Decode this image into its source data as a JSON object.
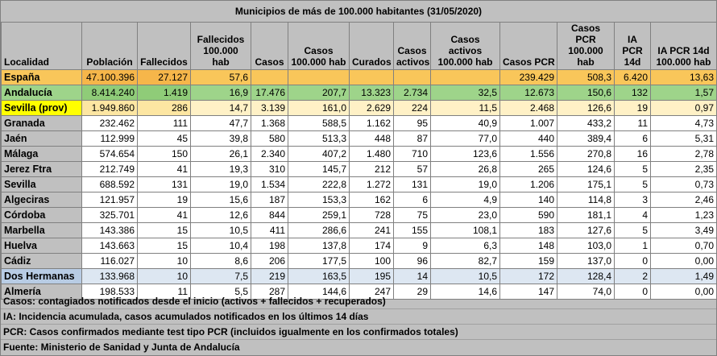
{
  "title": "Municipios de más de 100.000 habitantes (31/05/2020)",
  "columns": [
    "Localidad",
    "Población",
    "Fallecidos",
    "Fallecidos 100.000 hab",
    "Casos",
    "Casos 100.000 hab",
    "Curados",
    "Casos activos",
    "Casos activos 100.000 hab",
    "Casos PCR",
    "Casos PCR 100.000 hab",
    "IA PCR 14d",
    "IA PCR 14d 100.000 hab"
  ],
  "rows": [
    [
      "España",
      "47.100.396",
      "27.127",
      "57,6",
      "",
      "",
      "",
      "",
      "",
      "239.429",
      "508,3",
      "6.420",
      "13,63"
    ],
    [
      "Andalucía",
      "8.414.240",
      "1.419",
      "16,9",
      "17.476",
      "207,7",
      "13.323",
      "2.734",
      "32,5",
      "12.673",
      "150,6",
      "132",
      "1,57"
    ],
    [
      "Sevilla (prov)",
      "1.949.860",
      "286",
      "14,7",
      "3.139",
      "161,0",
      "2.629",
      "224",
      "11,5",
      "2.468",
      "126,6",
      "19",
      "0,97"
    ],
    [
      "Granada",
      "232.462",
      "111",
      "47,7",
      "1.368",
      "588,5",
      "1.162",
      "95",
      "40,9",
      "1.007",
      "433,2",
      "11",
      "4,73"
    ],
    [
      "Jaén",
      "112.999",
      "45",
      "39,8",
      "580",
      "513,3",
      "448",
      "87",
      "77,0",
      "440",
      "389,4",
      "6",
      "5,31"
    ],
    [
      "Málaga",
      "574.654",
      "150",
      "26,1",
      "2.340",
      "407,2",
      "1.480",
      "710",
      "123,6",
      "1.556",
      "270,8",
      "16",
      "2,78"
    ],
    [
      "Jerez Ftra",
      "212.749",
      "41",
      "19,3",
      "310",
      "145,7",
      "212",
      "57",
      "26,8",
      "265",
      "124,6",
      "5",
      "2,35"
    ],
    [
      "Sevilla",
      "688.592",
      "131",
      "19,0",
      "1.534",
      "222,8",
      "1.272",
      "131",
      "19,0",
      "1.206",
      "175,1",
      "5",
      "0,73"
    ],
    [
      "Algeciras",
      "121.957",
      "19",
      "15,6",
      "187",
      "153,3",
      "162",
      "6",
      "4,9",
      "140",
      "114,8",
      "3",
      "2,46"
    ],
    [
      "Córdoba",
      "325.701",
      "41",
      "12,6",
      "844",
      "259,1",
      "728",
      "75",
      "23,0",
      "590",
      "181,1",
      "4",
      "1,23"
    ],
    [
      "Marbella",
      "143.386",
      "15",
      "10,5",
      "411",
      "286,6",
      "241",
      "155",
      "108,1",
      "183",
      "127,6",
      "5",
      "3,49"
    ],
    [
      "Huelva",
      "143.663",
      "15",
      "10,4",
      "198",
      "137,8",
      "174",
      "9",
      "6,3",
      "148",
      "103,0",
      "1",
      "0,70"
    ],
    [
      "Cádiz",
      "116.027",
      "10",
      "8,6",
      "206",
      "177,5",
      "100",
      "96",
      "82,7",
      "159",
      "137,0",
      "0",
      "0,00"
    ],
    [
      "Dos Hermanas",
      "133.968",
      "10",
      "7,5",
      "219",
      "163,5",
      "195",
      "14",
      "10,5",
      "172",
      "128,4",
      "2",
      "1,49"
    ],
    [
      "Almería",
      "198.533",
      "11",
      "5,5",
      "287",
      "144,6",
      "247",
      "29",
      "14,6",
      "147",
      "74,0",
      "0",
      "0,00"
    ]
  ],
  "notes": [
    "Casos: contagiados notificados desde el inicio (activos + fallecidos + recuperados)",
    "IA: Incidencia acumulada, casos acumulados notificados en los últimos 14 días",
    "PCR: Casos confirmados mediante test tipo PCR (incluidos igualmente en los confirmados totales)",
    "Fuente: Ministerio de Sanidad y Junta de Andalucía"
  ]
}
